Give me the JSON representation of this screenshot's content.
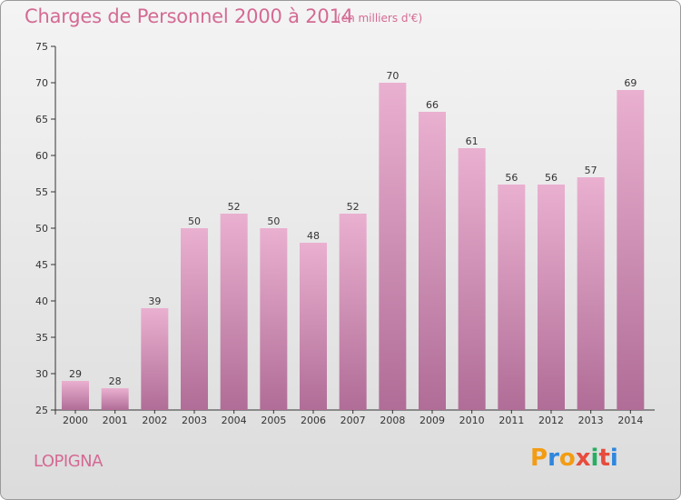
{
  "header": {
    "title": "Charges de Personnel 2000 à 2014",
    "subtitle": "(en milliers d'€)"
  },
  "footer": {
    "commune": "LOPIGNA",
    "logo_text": "Proxiti",
    "logo_colors": [
      "#f39c12",
      "#2e86de",
      "#f39c12",
      "#e74c3c",
      "#27ae60",
      "#e74c3c",
      "#2e86de"
    ]
  },
  "colors": {
    "bar_light": "#e9acce",
    "bar_dark": "#b26f98",
    "text": "#333333",
    "title": "#d46a94"
  },
  "chart_data": {
    "type": "bar",
    "categories": [
      "2000",
      "2001",
      "2002",
      "2003",
      "2004",
      "2005",
      "2006",
      "2007",
      "2008",
      "2009",
      "2010",
      "2011",
      "2012",
      "2013",
      "2014"
    ],
    "values": [
      29,
      28,
      39,
      50,
      52,
      50,
      48,
      52,
      70,
      66,
      61,
      56,
      56,
      57,
      69
    ],
    "ylim": [
      25,
      75
    ],
    "yticks": [
      25,
      30,
      35,
      40,
      45,
      50,
      55,
      60,
      65,
      70,
      75
    ],
    "grid": false
  }
}
